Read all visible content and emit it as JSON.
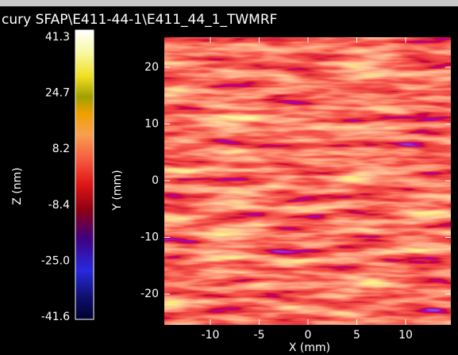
{
  "window": {
    "title": "cury SFAP\\E411-44-1\\E411_44_1_TWMRF"
  },
  "colorbar": {
    "label": "Z (nm)",
    "ticks": [
      "41.3",
      "24.7",
      "8.2",
      "-8.4",
      "-25.0",
      "-41.6"
    ]
  },
  "plot": {
    "y_label": "Y (mm)",
    "x_label": "X (mm)",
    "yticks": [
      "20",
      "10",
      "0",
      "-10",
      "-20"
    ],
    "xticks": [
      "-10",
      "-5",
      "0",
      "5",
      "10"
    ]
  }
}
